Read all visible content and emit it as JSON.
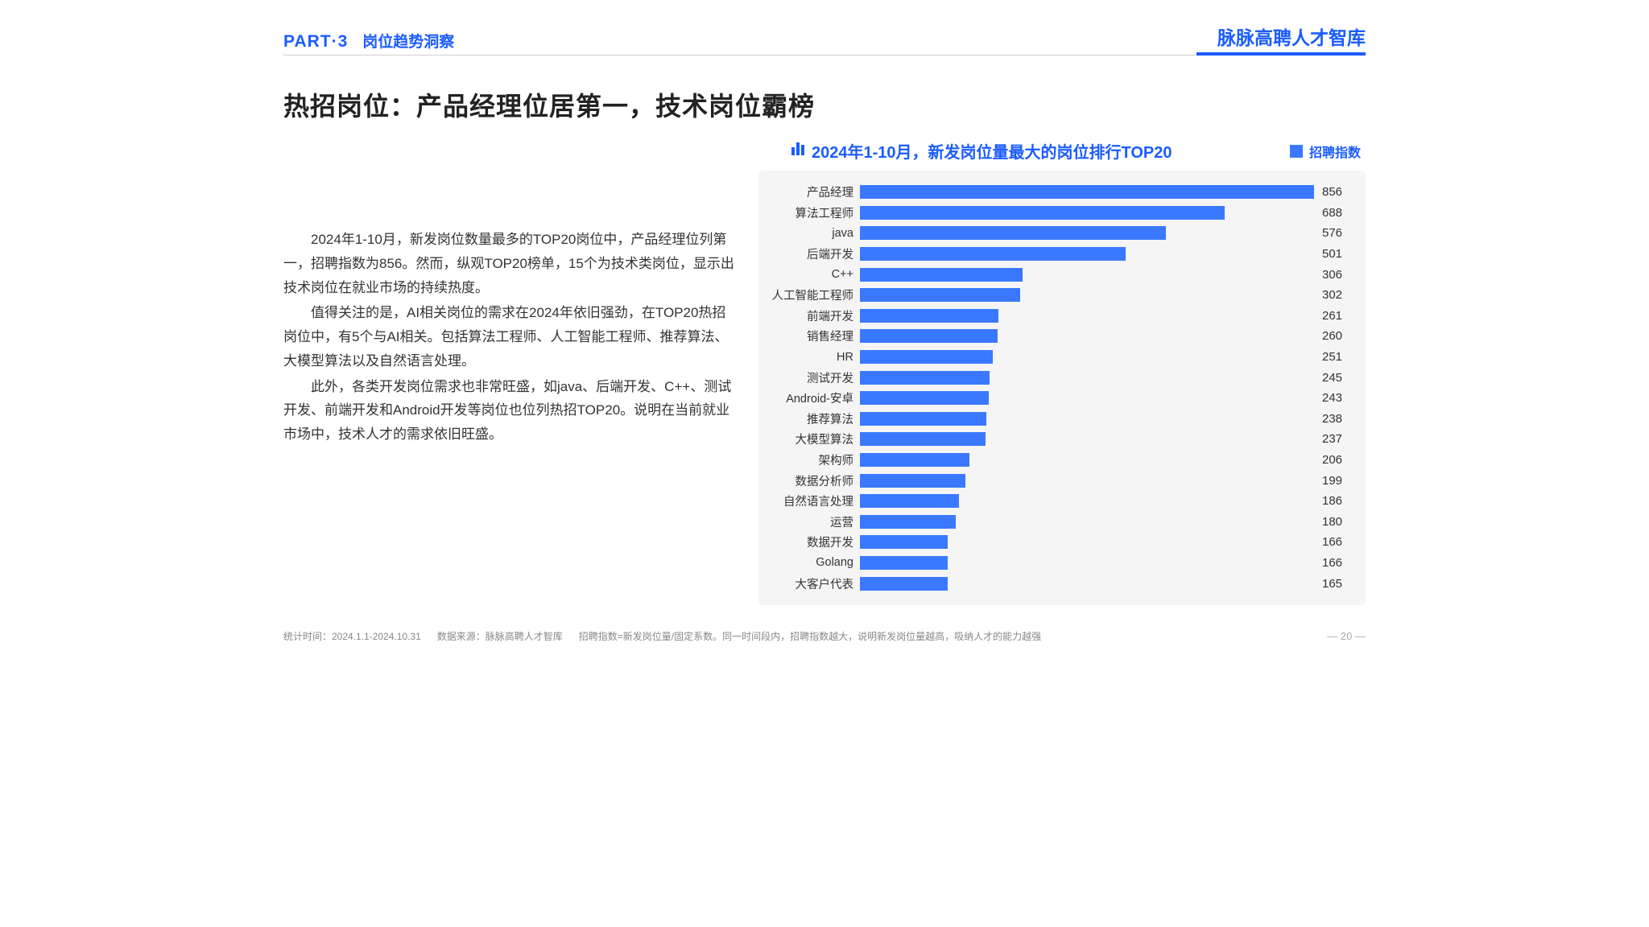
{
  "header": {
    "part_label": "PART·3",
    "part_sub": "岗位趋势洞察",
    "brand": "脉脉高聘人才智库"
  },
  "title": "热招岗位：产品经理位居第一，技术岗位霸榜",
  "paragraphs": [
    "2024年1-10月，新发岗位数量最多的TOP20岗位中，产品经理位列第一，招聘指数为856。然而，纵观TOP20榜单，15个为技术类岗位，显示出技术岗位在就业市场的持续热度。",
    "值得关注的是，AI相关岗位的需求在2024年依旧强劲，在TOP20热招岗位中，有5个与AI相关。包括算法工程师、人工智能工程师、推荐算法、大模型算法以及自然语言处理。",
    "此外，各类开发岗位需求也非常旺盛，如java、后端开发、C++、测试开发、前端开发和Android开发等岗位也位列热招TOP20。说明在当前就业市场中，技术人才的需求依旧旺盛。"
  ],
  "chart": {
    "type": "bar",
    "title": "2024年1-10月，新发岗位量最大的岗位排行TOP20",
    "legend_label": "招聘指数",
    "bar_color": "#3a79ff",
    "background_color": "#f5f5f5",
    "title_color": "#1b5cff",
    "label_fontsize": 14.5,
    "value_fontsize": 15,
    "max_value": 856,
    "items": [
      {
        "label": "产品经理",
        "value": 856
      },
      {
        "label": "算法工程师",
        "value": 688
      },
      {
        "label": "java",
        "value": 576
      },
      {
        "label": "后端开发",
        "value": 501
      },
      {
        "label": "C++",
        "value": 306
      },
      {
        "label": "人工智能工程师",
        "value": 302
      },
      {
        "label": "前端开发",
        "value": 261
      },
      {
        "label": "销售经理",
        "value": 260
      },
      {
        "label": "HR",
        "value": 251
      },
      {
        "label": "测试开发",
        "value": 245
      },
      {
        "label": "Android-安卓",
        "value": 243
      },
      {
        "label": "推荐算法",
        "value": 238
      },
      {
        "label": "大模型算法",
        "value": 237
      },
      {
        "label": "架构师",
        "value": 206
      },
      {
        "label": "数据分析师",
        "value": 199
      },
      {
        "label": "自然语言处理",
        "value": 186
      },
      {
        "label": "运营",
        "value": 180
      },
      {
        "label": "数据开发",
        "value": 166
      },
      {
        "label": "Golang",
        "value": 166
      },
      {
        "label": "大客户代表",
        "value": 165
      }
    ]
  },
  "footer": {
    "stat_time": "统计时间：2024.1.1-2024.10.31",
    "data_source": "数据来源：脉脉高聘人才智库",
    "note": "招聘指数=新发岗位量/固定系数。同一时间段内，招聘指数越大，说明新发岗位量越高，吸纳人才的能力越强",
    "page_num": "— 20 —"
  }
}
